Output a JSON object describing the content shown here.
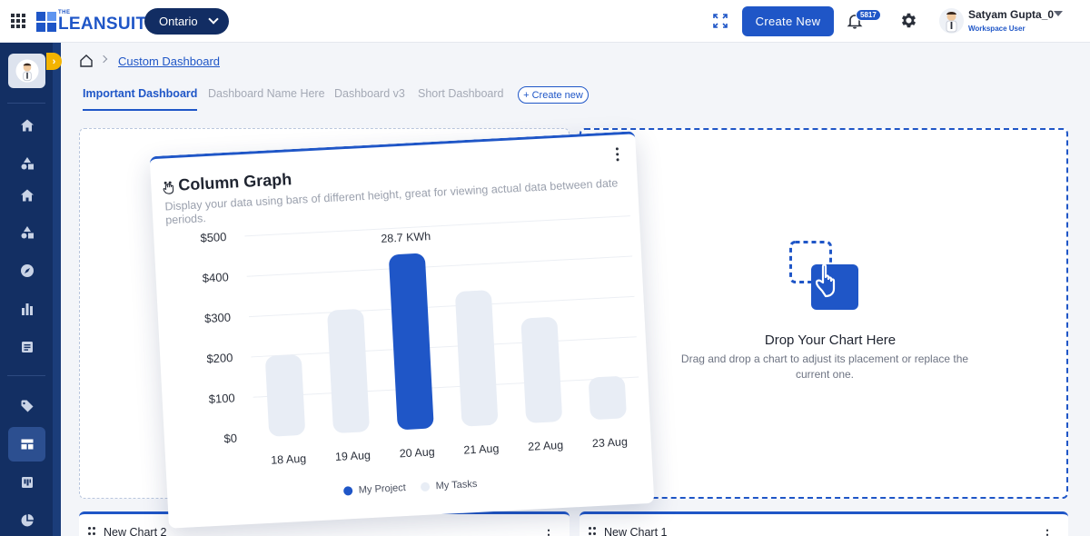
{
  "header": {
    "logo_small": "THE",
    "logo_name": "LEANSUITE",
    "region": "Ontario",
    "create_button": "Create New",
    "notification_count": "5817",
    "user_name": "Satyam Gupta_0",
    "user_role": "Workspace User"
  },
  "breadcrumb": {
    "current": "Custom Dashboard"
  },
  "tabs": [
    {
      "label": "Important Dashboard",
      "active": true
    },
    {
      "label": "Dashboard Name Here",
      "active": false
    },
    {
      "label": "Dashboard v3",
      "active": false
    },
    {
      "label": "Short Dashboard",
      "active": false
    }
  ],
  "create_tab": "+ Create new",
  "sidebar": {
    "items": [
      {
        "icon": "home-icon"
      },
      {
        "icon": "shapes-icon"
      },
      {
        "icon": "home-icon"
      },
      {
        "icon": "shapes-icon"
      },
      {
        "icon": "compass-icon"
      },
      {
        "icon": "bar-chart-icon"
      },
      {
        "icon": "document-icon"
      },
      {
        "icon": "tag-icon"
      },
      {
        "icon": "dashboard-icon",
        "active": true
      },
      {
        "icon": "board-icon"
      },
      {
        "icon": "pie-chart-icon"
      }
    ]
  },
  "chart_card": {
    "title": "Column Graph",
    "description": "Display your data using bars of different height, great for viewing actual data between date periods."
  },
  "chart_data": {
    "type": "bar",
    "categories": [
      "18 Aug",
      "19 Aug",
      "20 Aug",
      "21 Aug",
      "22 Aug",
      "23 Aug"
    ],
    "series": [
      {
        "name": "My Project",
        "values": [
          null,
          null,
          435,
          null,
          null,
          null
        ],
        "color": "#1f56c7"
      },
      {
        "name": "My Tasks",
        "values": [
          200,
          305,
          null,
          335,
          260,
          105
        ],
        "color": "#e8edf5"
      }
    ],
    "yticks": [
      "$0",
      "$100",
      "$200",
      "$300",
      "$400",
      "$500"
    ],
    "ylim": [
      0,
      500
    ],
    "annotation": {
      "category": "20 Aug",
      "text": "28.7 KWh"
    },
    "legend_position": "bottom"
  },
  "drop_zone": {
    "title": "Drop Your Chart Here",
    "description": "Drag and drop a chart to adjust its placement or replace the current one."
  },
  "bottom_cards": [
    {
      "title": "New Chart 2"
    },
    {
      "title": "New Chart 1"
    }
  ],
  "colors": {
    "accent": "#1f56c7",
    "sidebar": "#132f63",
    "sidebar_toggle": "#f4b400"
  }
}
